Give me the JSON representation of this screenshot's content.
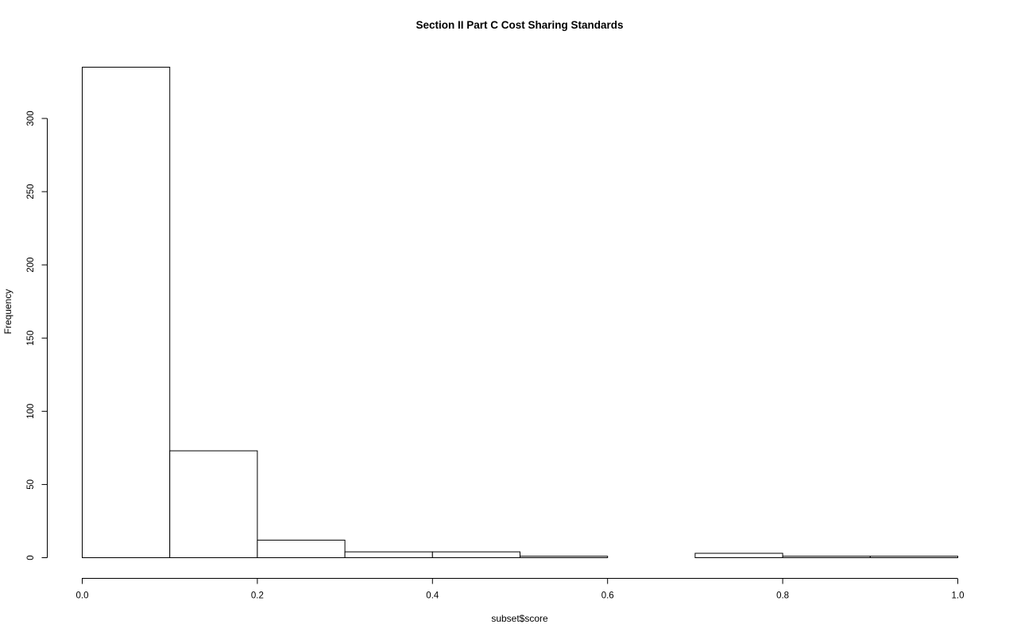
{
  "chart_data": {
    "type": "bar",
    "title": "Section II Part C Cost Sharing Standards",
    "xlabel": "subset$score",
    "ylabel": "Frequency",
    "bins": [
      {
        "start": 0.0,
        "end": 0.1,
        "count": 335
      },
      {
        "start": 0.1,
        "end": 0.2,
        "count": 73
      },
      {
        "start": 0.2,
        "end": 0.3,
        "count": 12
      },
      {
        "start": 0.3,
        "end": 0.4,
        "count": 4
      },
      {
        "start": 0.4,
        "end": 0.5,
        "count": 4
      },
      {
        "start": 0.5,
        "end": 0.6,
        "count": 1
      },
      {
        "start": 0.6,
        "end": 0.7,
        "count": 0
      },
      {
        "start": 0.7,
        "end": 0.8,
        "count": 3
      },
      {
        "start": 0.8,
        "end": 0.9,
        "count": 1
      },
      {
        "start": 0.9,
        "end": 1.0,
        "count": 1
      }
    ],
    "xlim": [
      0,
      1
    ],
    "xticks": [
      0.0,
      0.2,
      0.4,
      0.6,
      0.8,
      1.0
    ],
    "xtick_labels": [
      "0.0",
      "0.2",
      "0.4",
      "0.6",
      "0.8",
      "1.0"
    ],
    "yticks": [
      0,
      50,
      100,
      150,
      200,
      250,
      300
    ],
    "ytick_labels": [
      "0",
      "50",
      "100",
      "150",
      "200",
      "250",
      "300"
    ],
    "grid": false,
    "colors": {
      "bar_fill": "#ffffff",
      "bar_stroke": "#000000"
    }
  }
}
